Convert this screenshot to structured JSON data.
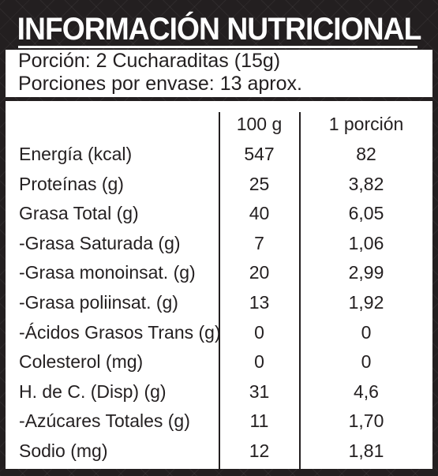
{
  "title": "INFORMACIÓN NUTRICIONAL",
  "serving": {
    "portion": "Porción: 2 Cucharaditas (15g)",
    "per_container": "Porciones por envase: 13 aprox."
  },
  "table": {
    "headers": {
      "label": "",
      "per_100g": "100 g",
      "per_portion": "1 porción"
    },
    "rows": [
      {
        "label": "Energía (kcal)",
        "per_100g": "547",
        "per_portion": "82"
      },
      {
        "label": "Proteínas (g)",
        "per_100g": "25",
        "per_portion": "3,82"
      },
      {
        "label": "Grasa Total (g)",
        "per_100g": "40",
        "per_portion": "6,05"
      },
      {
        "label": "-Grasa Saturada (g)",
        "per_100g": "7",
        "per_portion": "1,06"
      },
      {
        "label": "-Grasa monoinsat. (g)",
        "per_100g": "20",
        "per_portion": "2,99"
      },
      {
        "label": "-Grasa poliinsat. (g)",
        "per_100g": "13",
        "per_portion": "1,92"
      },
      {
        "label": "-Ácidos Grasos Trans (g)",
        "per_100g": "0",
        "per_portion": "0"
      },
      {
        "label": "Colesterol (mg)",
        "per_100g": "0",
        "per_portion": "0"
      },
      {
        "label": "H. de C. (Disp) (g)",
        "per_100g": "31",
        "per_portion": "4,6"
      },
      {
        "label": "-Azúcares Totales (g)",
        "per_100g": "11",
        "per_portion": "1,70"
      },
      {
        "label": "Sodio (mg)",
        "per_100g": "12",
        "per_portion": "1,81"
      }
    ]
  },
  "colors": {
    "background": "#231f20",
    "panel": "#ffffff",
    "text_dark": "#231f20",
    "text_light": "#ffffff"
  }
}
